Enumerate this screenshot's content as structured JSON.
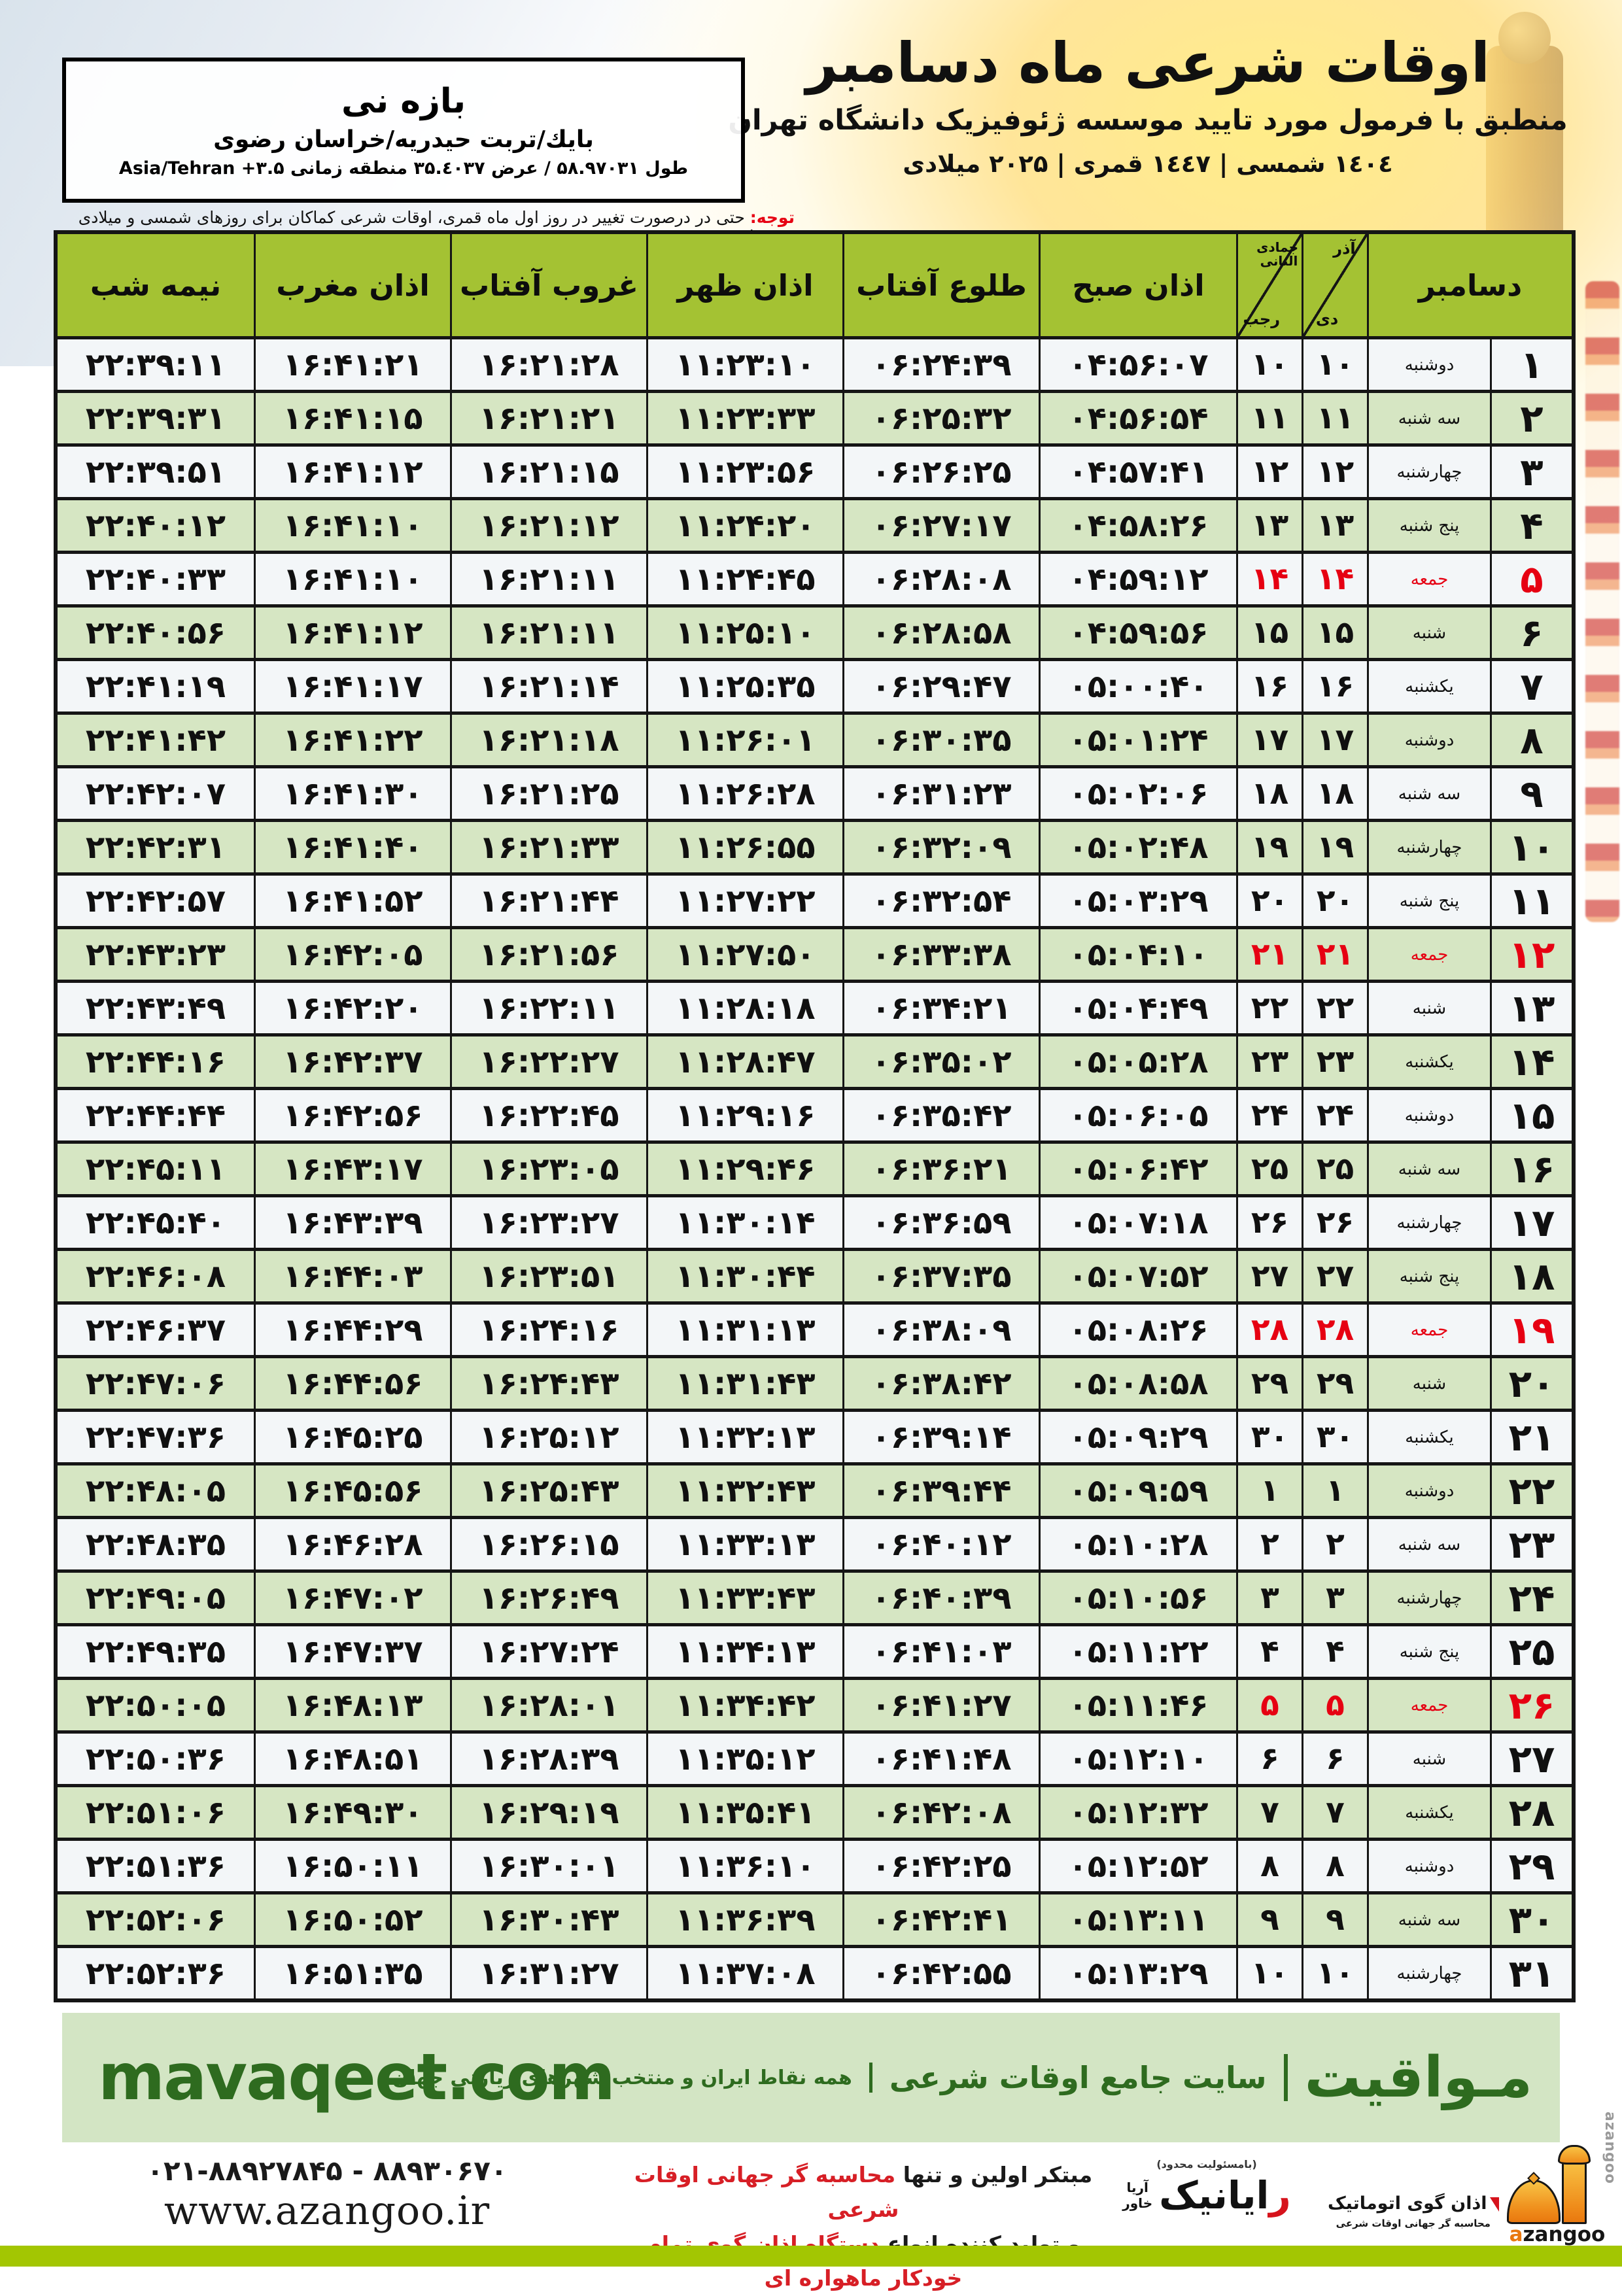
{
  "colors": {
    "header_green": "#a4c233",
    "row_green": "#d6e6c3",
    "row_white": "#f3f6f8",
    "friday_red": "#e60012",
    "band_bg": "#d3e5c4",
    "band_green": "#2e6b1f",
    "bottom_bar": "#a3c602"
  },
  "page": {
    "title": "اوقات شرعی ماه دسامبر",
    "subtitle": "منطبق با فرمول مورد تایید موسسه ژئوفیزیک دانشگاه تهران",
    "year_line": "۱٤۰٤ شمسی | ۱٤٤۷ قمری | ۲۰۲۵ میلادی"
  },
  "location_box": {
    "name": "بازه نی",
    "region": "بایك/تربت حیدریه/خراسان رضوی",
    "coords": "طول ۵۸.۹۷۰۳۱ / عرض ۳۵.٤۰۳۷ منطقه زمانی Asia/Tehran +۳.۵"
  },
  "note": {
    "label": "توجه:",
    "text": " حتی در درصورت تغییر در روز اول ماه قمری، اوقات شرعی کماکان برای روزهای شمسی و میلادی معتبر است."
  },
  "table": {
    "headers": {
      "december": "دسامبر",
      "solar_top": "آذر",
      "solar_bottom": "دی",
      "lunar_top": "جمادی الثانی",
      "lunar_bottom": "رجب",
      "azan_sobh": "اذان صبح",
      "tolu_aftab": "طلوع آفتاب",
      "azan_zohr": "اذان ظهر",
      "ghorub_aftab": "غروب آفتاب",
      "azan_maghreb": "اذان مغرب",
      "nimeh_shab": "نیمه شب"
    },
    "row_fields": [
      "december_day",
      "weekday",
      "solar_day",
      "lunar_day",
      "azan_sobh",
      "tolu_aftab",
      "azan_zohr",
      "ghorub_aftab",
      "azan_maghreb",
      "nimeh_shab"
    ],
    "friday_rows": [
      5,
      12,
      19,
      26
    ],
    "rows": [
      [
        1,
        "دوشنبه",
        10,
        10,
        "04:56:07",
        "06:24:39",
        "11:23:10",
        "16:21:28",
        "16:41:21",
        "22:39:11"
      ],
      [
        2,
        "سه شنبه",
        11,
        11,
        "04:56:54",
        "06:25:32",
        "11:23:33",
        "16:21:21",
        "16:41:15",
        "22:39:31"
      ],
      [
        3,
        "چهارشنبه",
        12,
        12,
        "04:57:41",
        "06:26:25",
        "11:23:56",
        "16:21:15",
        "16:41:12",
        "22:39:51"
      ],
      [
        4,
        "پنج شنبه",
        13,
        13,
        "04:58:26",
        "06:27:17",
        "11:24:20",
        "16:21:12",
        "16:41:10",
        "22:40:12"
      ],
      [
        5,
        "جمعه",
        14,
        14,
        "04:59:12",
        "06:28:08",
        "11:24:45",
        "16:21:11",
        "16:41:10",
        "22:40:33"
      ],
      [
        6,
        "شنبه",
        15,
        15,
        "04:59:56",
        "06:28:58",
        "11:25:10",
        "16:21:11",
        "16:41:12",
        "22:40:56"
      ],
      [
        7,
        "یکشنبه",
        16,
        16,
        "05:00:40",
        "06:29:47",
        "11:25:35",
        "16:21:14",
        "16:41:17",
        "22:41:19"
      ],
      [
        8,
        "دوشنبه",
        17,
        17,
        "05:01:24",
        "06:30:35",
        "11:26:01",
        "16:21:18",
        "16:41:22",
        "22:41:42"
      ],
      [
        9,
        "سه شنبه",
        18,
        18,
        "05:02:06",
        "06:31:23",
        "11:26:28",
        "16:21:25",
        "16:41:30",
        "22:42:07"
      ],
      [
        10,
        "چهارشنبه",
        19,
        19,
        "05:02:48",
        "06:32:09",
        "11:26:55",
        "16:21:33",
        "16:41:40",
        "22:42:31"
      ],
      [
        11,
        "پنج شنبه",
        20,
        20,
        "05:03:29",
        "06:32:54",
        "11:27:22",
        "16:21:44",
        "16:41:52",
        "22:42:57"
      ],
      [
        12,
        "جمعه",
        21,
        21,
        "05:04:10",
        "06:33:38",
        "11:27:50",
        "16:21:56",
        "16:42:05",
        "22:43:23"
      ],
      [
        13,
        "شنبه",
        22,
        22,
        "05:04:49",
        "06:34:21",
        "11:28:18",
        "16:22:11",
        "16:42:20",
        "22:43:49"
      ],
      [
        14,
        "یکشنبه",
        23,
        23,
        "05:05:28",
        "06:35:02",
        "11:28:47",
        "16:22:27",
        "16:42:37",
        "22:44:16"
      ],
      [
        15,
        "دوشنبه",
        24,
        24,
        "05:06:05",
        "06:35:42",
        "11:29:16",
        "16:22:45",
        "16:42:56",
        "22:44:44"
      ],
      [
        16,
        "سه شنبه",
        25,
        25,
        "05:06:42",
        "06:36:21",
        "11:29:46",
        "16:23:05",
        "16:43:17",
        "22:45:11"
      ],
      [
        17,
        "چهارشنبه",
        26,
        26,
        "05:07:18",
        "06:36:59",
        "11:30:14",
        "16:23:27",
        "16:43:39",
        "22:45:40"
      ],
      [
        18,
        "پنج شنبه",
        27,
        27,
        "05:07:52",
        "06:37:35",
        "11:30:44",
        "16:23:51",
        "16:44:03",
        "22:46:08"
      ],
      [
        19,
        "جمعه",
        28,
        28,
        "05:08:26",
        "06:38:09",
        "11:31:13",
        "16:24:16",
        "16:44:29",
        "22:46:37"
      ],
      [
        20,
        "شنبه",
        29,
        29,
        "05:08:58",
        "06:38:42",
        "11:31:43",
        "16:24:43",
        "16:44:56",
        "22:47:06"
      ],
      [
        21,
        "یکشنبه",
        30,
        30,
        "05:09:29",
        "06:39:14",
        "11:32:13",
        "16:25:12",
        "16:45:25",
        "22:47:36"
      ],
      [
        22,
        "دوشنبه",
        1,
        1,
        "05:09:59",
        "06:39:44",
        "11:32:43",
        "16:25:43",
        "16:45:56",
        "22:48:05"
      ],
      [
        23,
        "سه شنبه",
        2,
        2,
        "05:10:28",
        "06:40:12",
        "11:33:13",
        "16:26:15",
        "16:46:28",
        "22:48:35"
      ],
      [
        24,
        "چهارشنبه",
        3,
        3,
        "05:10:56",
        "06:40:39",
        "11:33:43",
        "16:26:49",
        "16:47:02",
        "22:49:05"
      ],
      [
        25,
        "پنج شنبه",
        4,
        4,
        "05:11:22",
        "06:41:03",
        "11:34:13",
        "16:27:24",
        "16:47:37",
        "22:49:35"
      ],
      [
        26,
        "جمعه",
        5,
        5,
        "05:11:46",
        "06:41:27",
        "11:34:42",
        "16:28:01",
        "16:48:13",
        "22:50:05"
      ],
      [
        27,
        "شنبه",
        6,
        6,
        "05:12:10",
        "06:41:48",
        "11:35:12",
        "16:28:39",
        "16:48:51",
        "22:50:36"
      ],
      [
        28,
        "یکشنبه",
        7,
        7,
        "05:12:32",
        "06:42:08",
        "11:35:41",
        "16:29:19",
        "16:49:30",
        "22:51:06"
      ],
      [
        29,
        "دوشنبه",
        8,
        8,
        "05:12:52",
        "06:42:25",
        "11:36:10",
        "16:30:01",
        "16:50:11",
        "22:51:36"
      ],
      [
        30,
        "سه شنبه",
        9,
        9,
        "05:13:11",
        "06:42:41",
        "11:36:39",
        "16:30:43",
        "16:50:52",
        "22:52:06"
      ],
      [
        31,
        "چهارشنبه",
        10,
        10,
        "05:13:29",
        "06:42:55",
        "11:37:08",
        "16:31:27",
        "16:51:35",
        "22:52:36"
      ]
    ]
  },
  "footer_band": {
    "brand_fa": "مـواقیت",
    "site_desc": "سایت جامع اوقات شرعی",
    "coverage": "همه نقاط ایران و منتخب شهرهای زیارتی جهان",
    "domain": "mavaqeet.com"
  },
  "bottom": {
    "phone": "۰۲۱-۸۸۹۲۷۸۴۵ - ۸۸۹۳۰۶۷۰",
    "website": "www.azangoo.ir",
    "line1_black": "مبتکر اولین و تنها ",
    "line1_red": "محاسبه گر جهانی اوقات شرعی",
    "line2_black": "و تولید کننده انواع ",
    "line2_red": "دستگاه اذان گوی تمام خودکار ماهواره ای",
    "rayanik": {
      "note": "(بامسئولیت محدود)",
      "name_first": "ر",
      "name_rest": "ایانیک",
      "sub_top": "آریا",
      "sub_bottom": "خاور"
    },
    "azangoo": {
      "title_fa": "اذان گوی اتوماتیک",
      "subtitle_fa": "محاسبه گر جهانی اوقات شرعی",
      "wordmark_a": "a",
      "wordmark_rest": "zangoo",
      "vertical_label": "azangoo"
    }
  }
}
